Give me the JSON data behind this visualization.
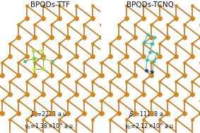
{
  "left_title": "BPQDs-TTF",
  "right_title": "BPQDs-TCNQ",
  "left_bg": "#b8d8ee",
  "right_bg": "#eeeab8",
  "phosphorus_color": "#d4861a",
  "phosphorus_edge": "#8b5500",
  "bond_color": "#c07820",
  "text_color": "#111111",
  "title_fontsize": 7.5,
  "label_fontsize": 5.8,
  "ttf_colors": [
    "#99cc55",
    "#bbdd44",
    "#55bb88",
    "#88cc55",
    "#aad044",
    "#66bb77"
  ],
  "tcnq_teal": "#44bbaa",
  "tcnq_dark": "#334455",
  "left_beta": "$\\beta_0$=2228 a.u.",
  "right_beta": "$\\beta_0$=11128 a.u.",
  "left_gamma": "$\\gamma_0$=1.38$\\times$10$^6$ a.u.",
  "right_gamma": "$\\gamma_0$=2.12$\\times$10$^6$ a.u."
}
